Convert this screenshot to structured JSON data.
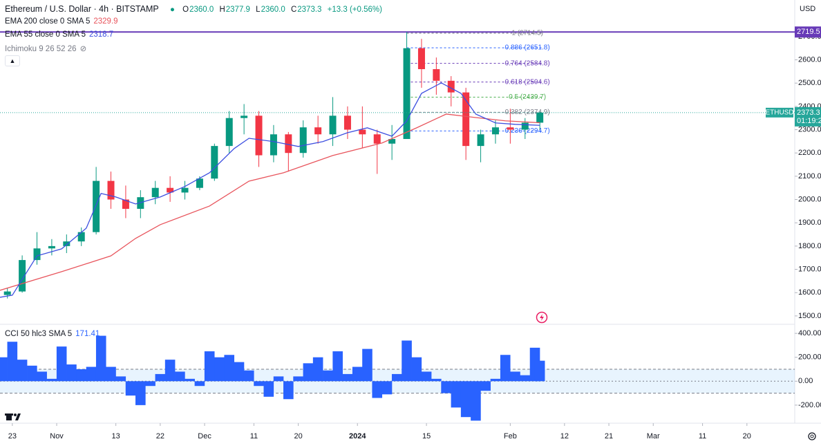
{
  "header": {
    "title": "Ethereum / U.S. Dollar · 4h · BITSTAMP",
    "ohlc": [
      {
        "key": "O",
        "value": "2360.0"
      },
      {
        "key": "H",
        "value": "2377.9"
      },
      {
        "key": "L",
        "value": "2360.0"
      },
      {
        "key": "C",
        "value": "2373.3"
      }
    ],
    "change": "+13.3 (+0.56%)",
    "ichimoku": "Ichimoku 9 26 52 26"
  },
  "chart_data": [
    {
      "type": "candlestick",
      "currency": "USD",
      "x": [
        -1,
        2,
        5,
        8,
        11,
        14,
        17,
        20,
        23,
        26,
        29,
        32,
        35,
        38,
        41,
        44,
        47,
        50,
        53,
        56,
        59,
        62,
        65,
        68,
        71,
        74,
        77,
        80,
        83,
        86,
        89,
        92,
        95,
        98,
        101,
        104,
        107
      ],
      "open": [
        1590,
        1605,
        1740,
        1790,
        1800,
        1820,
        1860,
        2080,
        2000,
        1960,
        2010,
        2050,
        2030,
        2050,
        2090,
        2230,
        2350,
        2360,
        2190,
        2280,
        2200,
        2310,
        2280,
        2360,
        2300,
        2280,
        2240,
        2260,
        2650,
        2560,
        2510,
        2460,
        2230,
        2280,
        2310,
        2300,
        2330
      ],
      "high": [
        1620,
        1760,
        1860,
        1830,
        1850,
        1880,
        2140,
        2120,
        2060,
        2040,
        2080,
        2100,
        2080,
        2100,
        2240,
        2380,
        2410,
        2380,
        2320,
        2290,
        2340,
        2360,
        2440,
        2400,
        2400,
        2300,
        2320,
        2720,
        2690,
        2610,
        2530,
        2480,
        2300,
        2340,
        2390,
        2350,
        2378
      ],
      "low": [
        1575,
        1600,
        1720,
        1760,
        1770,
        1800,
        1850,
        1960,
        1920,
        1920,
        1980,
        1990,
        2000,
        2040,
        2080,
        2200,
        2280,
        2140,
        2160,
        2120,
        2180,
        2240,
        2230,
        2260,
        2220,
        2110,
        2170,
        2260,
        2480,
        2450,
        2400,
        2170,
        2160,
        2240,
        2240,
        2260,
        2300
      ],
      "close": [
        1605,
        1740,
        1790,
        1800,
        1820,
        1860,
        2080,
        2000,
        1960,
        2010,
        2050,
        2030,
        2050,
        2090,
        2230,
        2350,
        2360,
        2190,
        2280,
        2200,
        2310,
        2280,
        2360,
        2300,
        2280,
        2240,
        2260,
        2650,
        2560,
        2510,
        2460,
        2230,
        2280,
        2310,
        2300,
        2330,
        2373.3
      ],
      "up_color": "#089981",
      "down_color": "#f23645",
      "series": [
        {
          "name": "EMA 200 close 0 SMA 5",
          "last_label": "2329.9",
          "color": "#e8545c",
          "x": [
            -2.5,
            10,
            20,
            25,
            30,
            40,
            48,
            55,
            65,
            75,
            82,
            88,
            94,
            100,
            107
          ],
          "values": [
            1610,
            1690,
            1758,
            1833,
            1892,
            1972,
            2079,
            2115,
            2189,
            2243,
            2308,
            2367,
            2352,
            2338,
            2329.9
          ]
        },
        {
          "name": "EMA 55 close 0 SMA 5",
          "last_label": "2318.7",
          "color": "#3d4fe0",
          "x": [
            -2.5,
            0,
            5,
            10,
            15,
            18,
            21,
            25,
            30,
            35,
            40,
            45,
            48,
            53,
            58,
            63,
            68,
            72,
            77,
            80,
            83,
            87,
            91,
            94,
            98,
            102,
            107
          ],
          "values": [
            1580,
            1589,
            1758,
            1788,
            1877,
            2026,
            2011,
            1981,
            2011,
            2056,
            2115,
            2219,
            2263,
            2249,
            2228,
            2249,
            2287,
            2308,
            2272,
            2338,
            2456,
            2501,
            2456,
            2367,
            2329,
            2323,
            2318.7
          ]
        }
      ],
      "fib_levels": [
        {
          "value": 2714.5,
          "label": "1 (2714.5)",
          "color": "#787b86"
        },
        {
          "value": 2651.8,
          "label": "0.886 (2651.8)",
          "color": "#2962ff"
        },
        {
          "value": 2584.8,
          "label": "0.764 (2584.8)",
          "color": "#673ab7"
        },
        {
          "value": 2504.6,
          "label": "0.618 (2504.6)",
          "color": "#673ab7"
        },
        {
          "value": 2439.7,
          "label": "0.5 (2439.7)",
          "color": "#4caf50"
        },
        {
          "value": 2374.9,
          "label": "0.382 (2374.9)",
          "color": "#787b86"
        },
        {
          "value": 2294.7,
          "label": "0.236 (2294.7)",
          "color": "#2962ff"
        }
      ],
      "horizontal_line": {
        "value": 2719.5,
        "label": "2719.5",
        "color": "#673ab7"
      },
      "last_price": {
        "value": 2373.3,
        "label": "2373.3",
        "symbol": "ETHUSD",
        "countdown": "01:19:2",
        "color": "#26a69a"
      },
      "xlim": [
        -2.5,
        158.7
      ],
      "ylim": [
        1467,
        2857
      ],
      "yticks": [
        {
          "value": 1500,
          "label": "1500.0"
        },
        {
          "value": 1600,
          "label": "1600.0"
        },
        {
          "value": 1700,
          "label": "1700.0"
        },
        {
          "value": 1800,
          "label": "1800.0"
        },
        {
          "value": 1900,
          "label": "1900.0"
        },
        {
          "value": 2000,
          "label": "2000.0"
        },
        {
          "value": 2100,
          "label": "2100.0"
        },
        {
          "value": 2200,
          "label": "2200.0"
        },
        {
          "value": 2300,
          "label": "2300.0"
        },
        {
          "value": 2400,
          "label": "2400.0"
        },
        {
          "value": 2500,
          "label": "2500.0"
        },
        {
          "value": 2600,
          "label": "2600.0"
        },
        {
          "value": 2700,
          "label": "2700.0"
        }
      ]
    },
    {
      "type": "histogram",
      "name": "CCI 50 hlc3 SMA 5",
      "last_label": "171.41",
      "color": "#2962ff",
      "x": [
        -2,
        0,
        2,
        4,
        6,
        8,
        10,
        12,
        14,
        16,
        18,
        20,
        22,
        24,
        26,
        28,
        30,
        32,
        34,
        36,
        38,
        40,
        42,
        44,
        46,
        48,
        50,
        52,
        54,
        56,
        58,
        60,
        62,
        64,
        66,
        68,
        70,
        72,
        74,
        76,
        78,
        80,
        82,
        84,
        86,
        88,
        90,
        92,
        94,
        96,
        98,
        100,
        102,
        104,
        106,
        107
      ],
      "values": [
        200,
        330,
        180,
        130,
        80,
        20,
        290,
        140,
        100,
        120,
        380,
        120,
        40,
        -120,
        -200,
        -40,
        60,
        180,
        80,
        20,
        -40,
        250,
        200,
        220,
        160,
        90,
        -40,
        -130,
        40,
        -150,
        40,
        150,
        200,
        90,
        250,
        60,
        120,
        270,
        -140,
        -110,
        60,
        340,
        200,
        80,
        20,
        -100,
        -220,
        -300,
        -330,
        -80,
        20,
        220,
        80,
        50,
        280,
        171.41
      ],
      "band": [
        -100,
        100
      ],
      "xlim": [
        -2.5,
        158.7
      ],
      "ylim": [
        -351,
        470
      ],
      "yticks": [
        {
          "value": 400,
          "label": "400.00"
        },
        {
          "value": 200,
          "label": "200.00"
        },
        {
          "value": 0,
          "label": "0.00"
        },
        {
          "value": -200,
          "label": "-200.00"
        }
      ],
      "xticks": [
        {
          "value": 0,
          "label": "23"
        },
        {
          "value": 9,
          "label": "Nov"
        },
        {
          "value": 21,
          "label": "13"
        },
        {
          "value": 30,
          "label": "22"
        },
        {
          "value": 39,
          "label": "Dec"
        },
        {
          "value": 49,
          "label": "11"
        },
        {
          "value": 58,
          "label": "20"
        },
        {
          "value": 70,
          "label": "2024"
        },
        {
          "value": 84,
          "label": "15"
        },
        {
          "value": 101,
          "label": "Feb"
        },
        {
          "value": 112,
          "label": "12"
        },
        {
          "value": 121,
          "label": "21"
        },
        {
          "value": 130,
          "label": "Mar"
        },
        {
          "value": 140,
          "label": "11"
        },
        {
          "value": 149,
          "label": "20"
        }
      ]
    }
  ]
}
